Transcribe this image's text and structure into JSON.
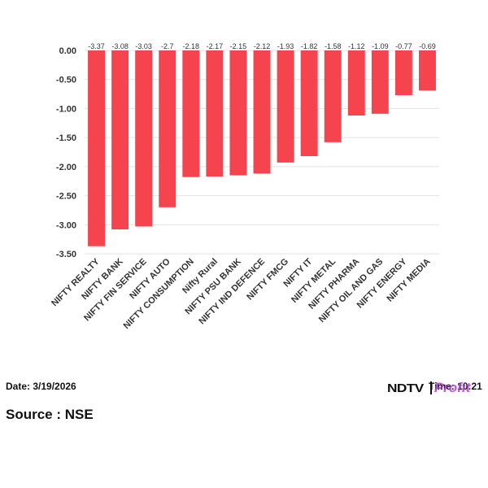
{
  "chart_data": {
    "type": "bar",
    "categories": [
      "NIFTY REALTY",
      "NIFTY BANK",
      "NIFTY FIN SERVICE",
      "NIFTY AUTO",
      "NIFTY CONSUMPTION",
      "Nifty Rural",
      "NIFTY PSU BANK",
      "NIFTY IND DEFENCE",
      "NIFTY FMCG",
      "NIFTY IT",
      "NIFTY METAL",
      "NIFTY PHARMA",
      "NIFTY OIL AND GAS",
      "NIFTY ENERGY",
      "NIFTY MEDIA"
    ],
    "values": [
      -3.37,
      -3.08,
      -3.03,
      -2.7,
      -2.18,
      -2.17,
      -2.15,
      -2.12,
      -1.93,
      -1.82,
      -1.58,
      -1.12,
      -1.09,
      -0.77,
      -0.69
    ],
    "value_labels": [
      "-3.37",
      "-3.08",
      "-3.03",
      "-2.7",
      "-2.18",
      "-2.17",
      "-2.15",
      "-2.12",
      "-1.93",
      "-1.82",
      "-1.58",
      "-1.12",
      "-1.09",
      "-0.77",
      "-0.69"
    ],
    "ylim": [
      -3.5,
      0
    ],
    "yticks": [
      "0.00",
      "-0.50",
      "-1.00",
      "-1.50",
      "-2.00",
      "-2.50",
      "-3.00",
      "-3.50"
    ],
    "ytick_values": [
      0,
      -0.5,
      -1.0,
      -1.5,
      -2.0,
      -2.5,
      -3.0,
      -3.5
    ],
    "bar_color": "#f5444e",
    "grid": true,
    "legend": "none"
  },
  "footer": {
    "date": "Date: 3/19/2026",
    "time": "Time: 10:21",
    "source": "Source : NSE",
    "logo_text": "NDTV",
    "logo_suffix": "Profit"
  },
  "colors": {
    "bar": "#f5444e",
    "grid": "#e3e3e3",
    "logo_accent": "#b03bd6"
  }
}
